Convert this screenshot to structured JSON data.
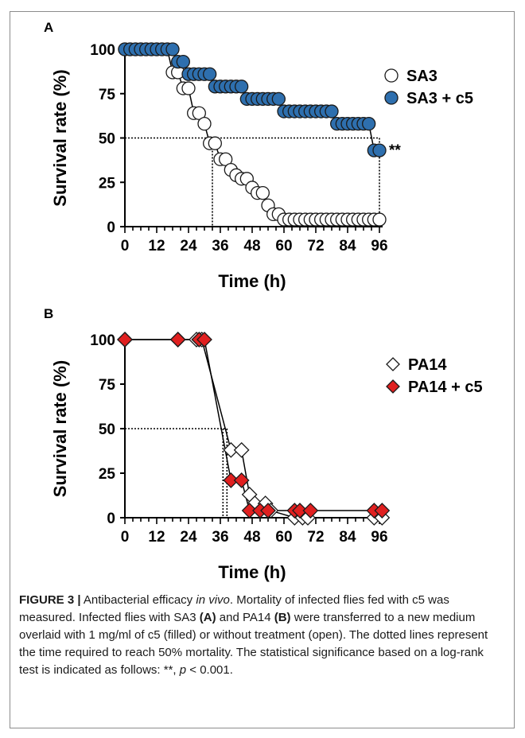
{
  "caption": {
    "figure_label": "FIGURE 3 |",
    "p1": " Antibacterial efficacy ",
    "p1_italic": "in vivo",
    "p2": ". Mortality of infected flies fed with c5 was measured. Infected flies with SA3 ",
    "lbl_a": "(A)",
    "p3": " and PA14 ",
    "lbl_b": "(B)",
    "p4": " were transferred to a new medium overlaid with 1 mg/ml of c5 (filled) or without treatment (open). The dotted lines represent the time required to reach 50% mortality. The statistical significance based on a log-rank test is indicated as follows: **, ",
    "p_italic": "p",
    "p5": " < 0.001."
  },
  "colors": {
    "filled_a": "#2e6fae",
    "filled_b": "#e02020",
    "open": "#ffffff",
    "stroke": "#1a1a1a"
  },
  "chart_data": [
    {
      "panel": "A",
      "type": "line",
      "xlabel": "Time (h)",
      "ylabel": "Survival rate (%)",
      "xlim": [
        0,
        96
      ],
      "ylim": [
        0,
        100
      ],
      "xticks": [
        0,
        12,
        24,
        36,
        48,
        60,
        72,
        84,
        96
      ],
      "yticks": [
        0,
        25,
        50,
        75,
        100
      ],
      "legend_position": "right",
      "series": [
        {
          "name": "SA3",
          "marker": "circle",
          "filled": false,
          "x": [
            0,
            2,
            4,
            6,
            8,
            10,
            12,
            14,
            16,
            18,
            20,
            22,
            24,
            26,
            28,
            30,
            32,
            34,
            36,
            38,
            40,
            42,
            44,
            46,
            48,
            50,
            52,
            54,
            56,
            58,
            60,
            62,
            64,
            66,
            68,
            70,
            72,
            74,
            76,
            78,
            80,
            82,
            84,
            86,
            88,
            90,
            92,
            94,
            96
          ],
          "y": [
            100,
            100,
            100,
            100,
            100,
            100,
            100,
            100,
            100,
            87,
            87,
            78,
            78,
            64,
            64,
            58,
            47,
            47,
            38,
            38,
            32,
            29,
            27,
            27,
            22,
            19,
            19,
            12,
            7,
            7,
            4,
            4,
            4,
            4,
            4,
            4,
            4,
            4,
            4,
            4,
            4,
            4,
            4,
            4,
            4,
            4,
            4,
            4,
            4
          ]
        },
        {
          "name": "SA3 + c5",
          "marker": "circle",
          "filled": true,
          "x": [
            0,
            2,
            4,
            6,
            8,
            10,
            12,
            14,
            16,
            18,
            20,
            22,
            24,
            26,
            28,
            30,
            32,
            34,
            36,
            38,
            40,
            42,
            44,
            46,
            48,
            50,
            52,
            54,
            56,
            58,
            60,
            62,
            64,
            66,
            68,
            70,
            72,
            74,
            76,
            78,
            80,
            82,
            84,
            86,
            88,
            90,
            92,
            94,
            96
          ],
          "y": [
            100,
            100,
            100,
            100,
            100,
            100,
            100,
            100,
            100,
            100,
            93,
            93,
            86,
            86,
            86,
            86,
            86,
            79,
            79,
            79,
            79,
            79,
            79,
            72,
            72,
            72,
            72,
            72,
            72,
            72,
            65,
            65,
            65,
            65,
            65,
            65,
            65,
            65,
            65,
            65,
            58,
            58,
            58,
            58,
            58,
            58,
            58,
            43,
            43
          ]
        }
      ],
      "annotations": [
        {
          "text": "**",
          "x": 96,
          "y": 43
        }
      ],
      "half_mortality": [
        {
          "x": 33,
          "y": 50
        },
        {
          "x": 96,
          "y": 50
        }
      ]
    },
    {
      "panel": "B",
      "type": "line",
      "xlabel": "Time (h)",
      "ylabel": "Survival rate (%)",
      "xlim": [
        0,
        96
      ],
      "ylim": [
        0,
        100
      ],
      "xticks": [
        0,
        12,
        24,
        36,
        48,
        60,
        72,
        84,
        96
      ],
      "yticks": [
        0,
        25,
        50,
        75,
        100
      ],
      "legend_position": "right",
      "series": [
        {
          "name": "PA14",
          "marker": "diamond",
          "filled": false,
          "x": [
            0,
            20,
            27,
            29,
            40,
            44,
            47,
            49,
            53,
            55,
            64,
            67,
            69,
            94,
            97
          ],
          "y": [
            100,
            100,
            100,
            100,
            38,
            38,
            13,
            8,
            8,
            4,
            0,
            0,
            0,
            0,
            0
          ]
        },
        {
          "name": "PA14 + c5",
          "marker": "diamond",
          "filled": true,
          "x": [
            0,
            20,
            28,
            30,
            40,
            44,
            47,
            51,
            54,
            64,
            66,
            70,
            94,
            97
          ],
          "y": [
            100,
            100,
            100,
            100,
            21,
            21,
            4,
            4,
            4,
            4,
            4,
            4,
            4,
            4
          ]
        }
      ],
      "half_mortality": [
        {
          "x": 37,
          "y": 50
        },
        {
          "x": 38.5,
          "y": 50
        }
      ]
    }
  ]
}
